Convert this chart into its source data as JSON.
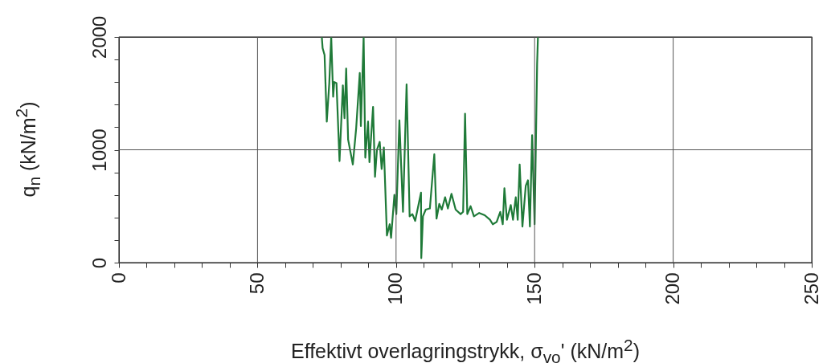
{
  "chart_data": {
    "type": "line",
    "xlabel": "Effektivt overlagringstrykk, σ$_{vo}$' (kN/m$^{2}$)",
    "ylabel": "q$_{n}$ (kN/m$^{2}$)",
    "x": [
      73.2,
      73.5,
      74.2,
      75.0,
      75.9,
      76.6,
      77.3,
      77.7,
      78.5,
      79.6,
      80.8,
      81.4,
      82.0,
      82.7,
      84.4,
      85.6,
      86.9,
      87.3,
      88.3,
      88.9,
      89.9,
      90.4,
      91.7,
      92.4,
      93.1,
      94.1,
      94.8,
      95.6,
      96.7,
      97.7,
      98.2,
      99.4,
      100.1,
      101.2,
      102.5,
      103.8,
      104.9,
      105.9,
      106.9,
      109.0,
      109.1,
      109.7,
      110.7,
      112.2,
      113.8,
      114.6,
      115.6,
      116.5,
      117.7,
      118.7,
      120.0,
      121.5,
      123.3,
      124.2,
      124.9,
      125.7,
      126.9,
      128.1,
      130.0,
      132.0,
      133.9,
      134.9,
      136.3,
      137.6,
      138.5,
      139.1,
      140.0,
      141.4,
      142.2,
      143.2,
      143.9,
      144.6,
      145.6,
      146.8,
      147.6,
      148.3,
      149.1,
      150.0,
      150.9,
      151.2
    ],
    "series": [
      {
        "color": "#1f7a38",
        "values": [
          2000,
          1900,
          1840,
          1250,
          1590,
          2000,
          1470,
          1600,
          1590,
          900,
          1570,
          1280,
          1720,
          1090,
          870,
          1190,
          1680,
          1210,
          2000,
          930,
          1250,
          890,
          1380,
          760,
          1000,
          1070,
          830,
          1020,
          240,
          340,
          220,
          600,
          430,
          1260,
          450,
          1580,
          410,
          430,
          370,
          620,
          40,
          410,
          470,
          480,
          960,
          390,
          520,
          470,
          580,
          480,
          610,
          470,
          430,
          450,
          1320,
          430,
          500,
          410,
          440,
          420,
          380,
          340,
          360,
          450,
          340,
          660,
          380,
          510,
          380,
          580,
          380,
          870,
          320,
          680,
          730,
          320,
          1130,
          340,
          1760,
          2000
        ]
      }
    ],
    "xlim": [
      0,
      250
    ],
    "ylim": [
      0,
      2000
    ],
    "xticks": [
      0,
      {
        "value": 10,
        "label": null
      },
      {
        "value": 20,
        "label": null
      },
      {
        "value": 30,
        "label": null
      },
      {
        "value": 40,
        "label": null
      },
      50,
      {
        "value": 60,
        "label": null
      },
      {
        "value": 70,
        "label": null
      },
      {
        "value": 80,
        "label": null
      },
      {
        "value": 90,
        "label": null
      },
      100,
      {
        "value": 110,
        "label": null
      },
      {
        "value": 120,
        "label": null
      },
      {
        "value": 130,
        "label": null
      },
      {
        "value": 140,
        "label": null
      },
      150,
      {
        "value": 160,
        "label": null
      },
      {
        "value": 170,
        "label": null
      },
      {
        "value": 180,
        "label": null
      },
      {
        "value": 190,
        "label": null
      },
      200,
      {
        "value": 210,
        "label": null
      },
      {
        "value": 220,
        "label": null
      },
      {
        "value": 230,
        "label": null
      },
      {
        "value": 240,
        "label": null
      },
      250
    ],
    "yticks": [
      0,
      {
        "value": 200,
        "label": null
      },
      {
        "value": 400,
        "label": null
      },
      {
        "value": 600,
        "label": null
      },
      {
        "value": 800,
        "label": null
      },
      1000,
      {
        "value": 1200,
        "label": null
      },
      {
        "value": 1400,
        "label": null
      },
      {
        "value": 1600,
        "label": null
      },
      {
        "value": 1800,
        "label": null
      },
      2000
    ],
    "grid": true,
    "line_style": "solid",
    "marker": "none"
  }
}
